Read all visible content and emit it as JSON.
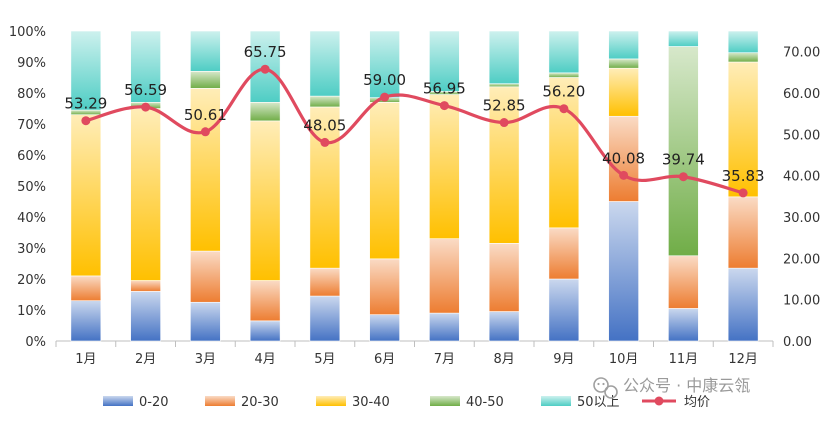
{
  "chart_data": {
    "type": "bar",
    "stacked": true,
    "percent_stacked": true,
    "categories": [
      "1月",
      "2月",
      "3月",
      "4月",
      "5月",
      "6月",
      "7月",
      "8月",
      "9月",
      "10月",
      "11月",
      "12月"
    ],
    "series": [
      {
        "name": "0-20",
        "color": "#4472C4",
        "values": [
          13,
          16,
          12.5,
          6.5,
          14.5,
          8.5,
          9,
          9.5,
          20,
          45,
          10.5,
          23.5
        ]
      },
      {
        "name": "20-30",
        "color": "#ED7D31",
        "values": [
          8,
          3.5,
          16.5,
          13,
          9,
          18,
          24,
          22,
          16.5,
          27.5,
          17,
          23
        ]
      },
      {
        "name": "30-40",
        "color": "#FFC000",
        "values": [
          52,
          55.5,
          52.5,
          51.5,
          52,
          50.5,
          46.5,
          50.5,
          48.5,
          15.5,
          0,
          43.5
        ]
      },
      {
        "name": "40-50",
        "color": "#70AD47",
        "values": [
          1.5,
          2,
          5.5,
          6,
          3.5,
          1.5,
          1,
          1,
          1.5,
          3,
          67.5,
          3
        ]
      },
      {
        "name": "50以上",
        "color": "#4ECDC4",
        "values": [
          25.5,
          23,
          13,
          23,
          21,
          21.5,
          19.5,
          17,
          13.5,
          9,
          5,
          7
        ]
      }
    ],
    "line_series": {
      "name": "均价",
      "color": "#E04A5F",
      "axis": "right",
      "values": [
        53.29,
        56.59,
        50.61,
        65.75,
        48.05,
        59.0,
        56.95,
        52.85,
        56.2,
        40.08,
        39.74,
        35.83
      ],
      "labels": [
        "53.29",
        "56.59",
        "50.61",
        "65.75",
        "48.05",
        "59.00",
        "56.95",
        "52.85",
        "56.20",
        "40.08",
        "39.74",
        "35.83"
      ]
    },
    "left_axis": {
      "min": 0,
      "max": 100,
      "ticks": [
        "0%",
        "10%",
        "20%",
        "30%",
        "40%",
        "50%",
        "60%",
        "70%",
        "80%",
        "90%",
        "100%"
      ]
    },
    "right_axis": {
      "min": 0,
      "max": 75,
      "ticks": [
        "0.00",
        "10.00",
        "20.00",
        "30.00",
        "40.00",
        "50.00",
        "60.00",
        "70.00"
      ]
    },
    "grid": false,
    "legend_position": "bottom",
    "title": "",
    "xlabel": "",
    "ylabel": ""
  },
  "watermark": {
    "text": "公众号 · 中康云瓴",
    "icon": "wechat-icon"
  }
}
